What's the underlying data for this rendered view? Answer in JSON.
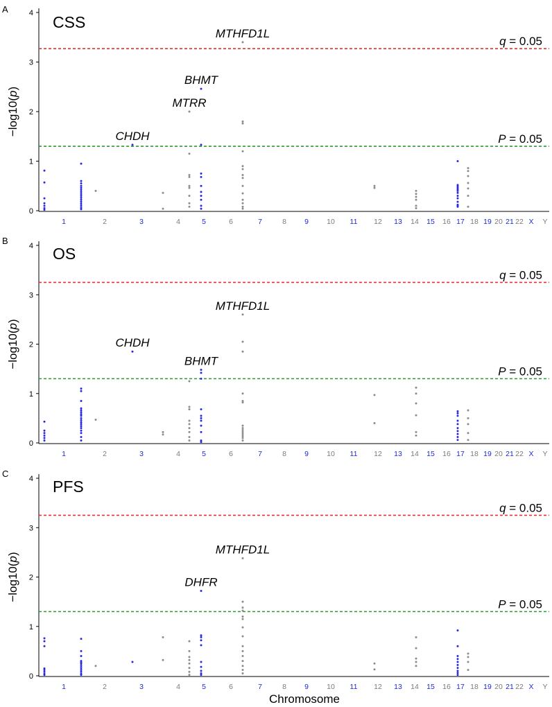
{
  "figure": {
    "x_axis_label": "Chromosome",
    "y_axis_label": "−log10(p)"
  },
  "chart_data": [
    {
      "type": "scatter",
      "panel_letter": "A",
      "title": "CSS",
      "ylabel": "−log10(p)",
      "ylim": [
        0,
        4.2
      ],
      "y_ticks": [
        0,
        1,
        2,
        3,
        4
      ],
      "x_categories": [
        "1",
        "2",
        "3",
        "4",
        "5",
        "6",
        "7",
        "8",
        "9",
        "10",
        "11",
        "12",
        "13",
        "14",
        "15",
        "16",
        "17",
        "18",
        "19",
        "20",
        "21",
        "22",
        "X",
        "Y"
      ],
      "thresholds": [
        {
          "label_var": "q",
          "label_rest": " = 0.05",
          "value": 3.27,
          "color": "#e8312f"
        },
        {
          "label_var": "P",
          "label_rest": " = 0.05",
          "value": 1.3,
          "color": "#2a9a2a"
        }
      ],
      "annotations": [
        {
          "text": "MTHFD1L",
          "chrom": "6",
          "value": 3.4
        },
        {
          "text": "BHMT",
          "chrom": "5",
          "value": 2.46
        },
        {
          "text": "MTRR",
          "chrom": "4",
          "value": 2.0
        },
        {
          "text": "CHDH",
          "chrom": "3",
          "value": 1.33
        }
      ],
      "series": [
        {
          "chrom": "1",
          "values": [
            0.81,
            0.57,
            0.25,
            0.15,
            0.1,
            0.05,
            0.02
          ]
        },
        {
          "chrom": "1",
          "values": [
            0.95,
            0.6,
            0.55,
            0.5,
            0.46,
            0.42,
            0.38,
            0.34,
            0.3,
            0.26,
            0.22,
            0.18,
            0.14,
            0.1,
            0.06,
            0.03
          ]
        },
        {
          "chrom": "2",
          "values": [
            0.4
          ]
        },
        {
          "chrom": "3",
          "values": [
            1.33
          ]
        },
        {
          "chrom": "4",
          "values": [
            0.36,
            0.04
          ]
        },
        {
          "chrom": "4",
          "values": [
            2.0,
            1.15,
            0.72,
            0.68,
            0.5,
            0.46,
            0.3,
            0.15,
            0.08
          ]
        },
        {
          "chrom": "5",
          "values": [
            2.46,
            1.33,
            0.75,
            0.68,
            0.5,
            0.38,
            0.3,
            0.22,
            0.1,
            0.04
          ]
        },
        {
          "chrom": "6",
          "values": [
            3.4,
            1.8,
            1.76,
            1.2,
            0.9,
            0.84,
            0.72,
            0.66,
            0.5,
            0.35,
            0.22,
            0.15,
            0.08,
            0.04
          ]
        },
        {
          "chrom": "12",
          "values": [
            0.5,
            0.46
          ]
        },
        {
          "chrom": "14",
          "values": [
            0.4,
            0.34,
            0.28,
            0.22,
            0.1,
            0.05
          ]
        },
        {
          "chrom": "17",
          "values": [
            1.0,
            0.52,
            0.49,
            0.46,
            0.43,
            0.4,
            0.36,
            0.3,
            0.25,
            0.18,
            0.12,
            0.1,
            0.08
          ]
        },
        {
          "chrom": "18",
          "values": [
            0.86,
            0.8,
            0.7,
            0.56,
            0.45,
            0.3,
            0.08
          ]
        }
      ]
    },
    {
      "type": "scatter",
      "panel_letter": "B",
      "title": "OS",
      "ylabel": "−log10(p)",
      "ylim": [
        0,
        4.2
      ],
      "y_ticks": [
        0,
        1,
        2,
        3,
        4
      ],
      "x_categories": [
        "1",
        "2",
        "3",
        "4",
        "5",
        "6",
        "7",
        "8",
        "9",
        "10",
        "11",
        "12",
        "13",
        "14",
        "15",
        "16",
        "17",
        "18",
        "19",
        "20",
        "21",
        "22",
        "X",
        "Y"
      ],
      "thresholds": [
        {
          "label_var": "q",
          "label_rest": " = 0.05",
          "value": 3.25,
          "color": "#e8312f"
        },
        {
          "label_var": "P",
          "label_rest": " = 0.05",
          "value": 1.3,
          "color": "#2a9a2a"
        }
      ],
      "annotations": [
        {
          "text": "MTHFD1L",
          "chrom": "6",
          "value": 2.6
        },
        {
          "text": "CHDH",
          "chrom": "3",
          "value": 1.85
        },
        {
          "text": "BHMT",
          "chrom": "5",
          "value": 1.48
        }
      ],
      "series": [
        {
          "chrom": "1",
          "values": [
            0.43,
            0.25,
            0.2,
            0.15,
            0.1,
            0.05
          ]
        },
        {
          "chrom": "1",
          "values": [
            1.1,
            1.05,
            0.85,
            0.7,
            0.66,
            0.62,
            0.58,
            0.55,
            0.5,
            0.46,
            0.42,
            0.38,
            0.34,
            0.3,
            0.25,
            0.2,
            0.12,
            0.05
          ]
        },
        {
          "chrom": "2",
          "values": [
            0.47
          ]
        },
        {
          "chrom": "3",
          "values": [
            1.85
          ]
        },
        {
          "chrom": "4",
          "values": [
            0.22,
            0.17
          ]
        },
        {
          "chrom": "4",
          "values": [
            1.25,
            0.73,
            0.68,
            0.45,
            0.38,
            0.3,
            0.22,
            0.12,
            0.05
          ]
        },
        {
          "chrom": "5",
          "values": [
            1.48,
            1.42,
            1.3,
            0.68,
            0.55,
            0.5,
            0.45,
            0.35,
            0.22,
            0.05,
            0.02
          ]
        },
        {
          "chrom": "6",
          "values": [
            2.6,
            2.05,
            1.85,
            1.0,
            0.85,
            0.82,
            0.35,
            0.3,
            0.26,
            0.22,
            0.18,
            0.14,
            0.1,
            0.05
          ]
        },
        {
          "chrom": "12",
          "values": [
            0.97,
            0.4
          ]
        },
        {
          "chrom": "14",
          "values": [
            1.12,
            1.0,
            0.8,
            0.56,
            0.22,
            0.15
          ]
        },
        {
          "chrom": "17",
          "values": [
            0.64,
            0.6,
            0.55,
            0.45,
            0.38,
            0.3,
            0.24,
            0.18,
            0.12,
            0.06
          ]
        },
        {
          "chrom": "18",
          "values": [
            0.66,
            0.5,
            0.38,
            0.2,
            0.06
          ]
        }
      ]
    },
    {
      "type": "scatter",
      "panel_letter": "C",
      "title": "PFS",
      "ylabel": "−log10(p)",
      "ylim": [
        0,
        4.2
      ],
      "y_ticks": [
        0,
        1,
        2,
        3,
        4
      ],
      "x_categories": [
        "1",
        "2",
        "3",
        "4",
        "5",
        "6",
        "7",
        "8",
        "9",
        "10",
        "11",
        "12",
        "13",
        "14",
        "15",
        "16",
        "17",
        "18",
        "19",
        "20",
        "21",
        "22",
        "X",
        "Y"
      ],
      "thresholds": [
        {
          "label_var": "q",
          "label_rest": " = 0.05",
          "value": 3.25,
          "color": "#e8312f"
        },
        {
          "label_var": "P",
          "label_rest": " = 0.05",
          "value": 1.3,
          "color": "#2a9a2a"
        }
      ],
      "annotations": [
        {
          "text": "MTHFD1L",
          "chrom": "6",
          "value": 2.38
        },
        {
          "text": "DHFR",
          "chrom": "5",
          "value": 1.72
        }
      ],
      "series": [
        {
          "chrom": "1",
          "values": [
            0.76,
            0.7,
            0.6,
            0.15,
            0.12,
            0.08,
            0.04,
            0.02
          ]
        },
        {
          "chrom": "1",
          "values": [
            0.75,
            0.5,
            0.4,
            0.3,
            0.27,
            0.24,
            0.2,
            0.16,
            0.12,
            0.08,
            0.04,
            0.02
          ]
        },
        {
          "chrom": "2",
          "values": [
            0.2
          ]
        },
        {
          "chrom": "3",
          "values": [
            0.28
          ]
        },
        {
          "chrom": "4",
          "values": [
            0.78,
            0.32
          ]
        },
        {
          "chrom": "4",
          "values": [
            0.7,
            0.5,
            0.38,
            0.32,
            0.25,
            0.16,
            0.08,
            0.02
          ]
        },
        {
          "chrom": "5",
          "values": [
            1.72,
            0.82,
            0.78,
            0.72,
            0.62,
            0.28,
            0.18,
            0.1,
            0.05,
            0.02
          ]
        },
        {
          "chrom": "6",
          "values": [
            2.38,
            1.5,
            1.38,
            1.32,
            1.2,
            1.15,
            0.98,
            0.8,
            0.6,
            0.5,
            0.4,
            0.3,
            0.2,
            0.12,
            0.05
          ]
        },
        {
          "chrom": "12",
          "values": [
            0.25,
            0.13
          ]
        },
        {
          "chrom": "14",
          "values": [
            0.78,
            0.56,
            0.35,
            0.28,
            0.2
          ]
        },
        {
          "chrom": "17",
          "values": [
            0.92,
            0.6,
            0.4,
            0.34,
            0.28,
            0.22,
            0.16,
            0.1,
            0.06,
            0.02
          ]
        },
        {
          "chrom": "18",
          "values": [
            0.45,
            0.38,
            0.28,
            0.12
          ]
        }
      ]
    }
  ]
}
